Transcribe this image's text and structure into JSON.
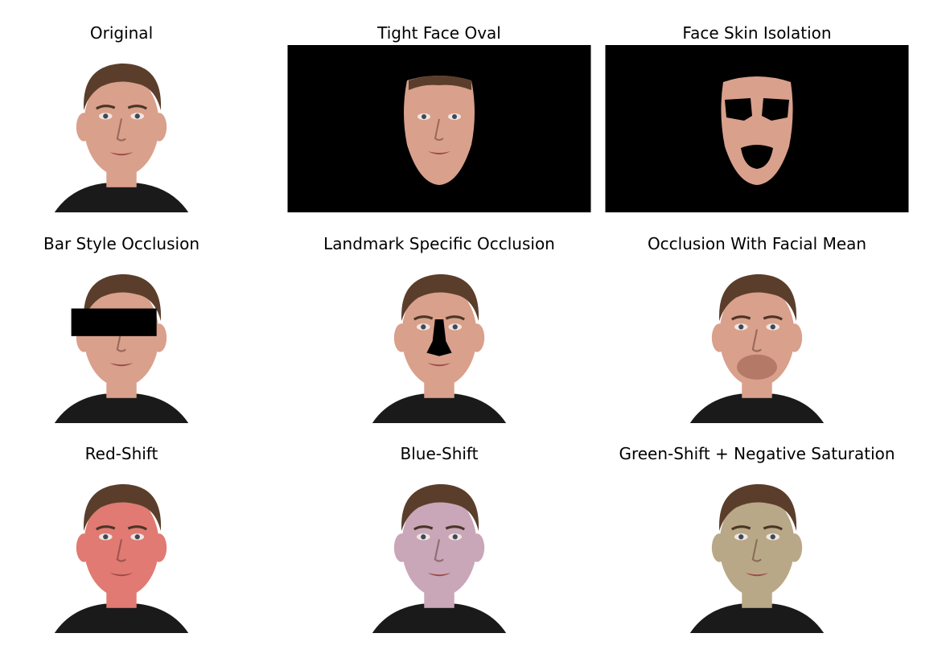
{
  "panels": [
    {
      "title": "Original",
      "variant": "original",
      "wide": false
    },
    {
      "title": "Tight Face Oval",
      "variant": "tight-oval",
      "wide": true
    },
    {
      "title": "Face Skin Isolation",
      "variant": "skin-isolation",
      "wide": true
    },
    {
      "title": "Bar Style Occlusion",
      "variant": "bar",
      "wide": false
    },
    {
      "title": "Landmark Specific Occlusion",
      "variant": "landmark",
      "wide": false
    },
    {
      "title": "Occlusion With Facial Mean",
      "variant": "facial-mean",
      "wide": false
    },
    {
      "title": "Red-Shift",
      "variant": "red",
      "wide": false
    },
    {
      "title": "Blue-Shift",
      "variant": "blue",
      "wide": false
    },
    {
      "title": "Green-Shift + Negative Saturation",
      "variant": "green",
      "wide": false
    }
  ],
  "colors": {
    "skin": "#d9a08c",
    "skin_red": "#e07a72",
    "skin_blue": "#c9a6b8",
    "skin_green": "#b9a888",
    "hair": "#5a3e2b",
    "shirt": "#1a1a1a",
    "mask": "#000000",
    "facial_mean": "#b57a67"
  }
}
